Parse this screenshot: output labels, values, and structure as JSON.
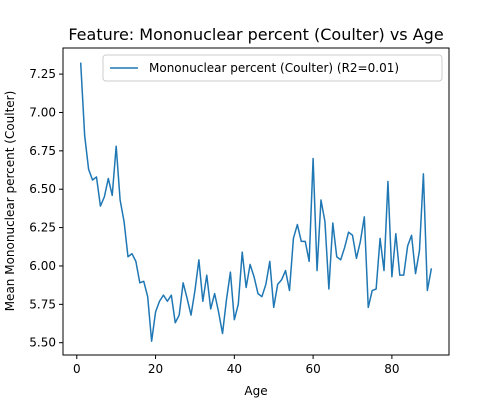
{
  "chart_data": {
    "type": "line",
    "title": "Feature: Mononuclear percent (Coulter) vs Age",
    "xlabel": "Age",
    "ylabel": "Mean Mononuclear percent (Coulter)",
    "xlim": [
      -3.5,
      94.5
    ],
    "ylim": [
      5.42,
      7.42
    ],
    "xticks": [
      0,
      20,
      40,
      60,
      80
    ],
    "xtick_labels": [
      "0",
      "20",
      "40",
      "60",
      "80"
    ],
    "yticks": [
      5.5,
      5.75,
      6.0,
      6.25,
      6.5,
      6.75,
      7.0,
      7.25
    ],
    "ytick_labels": [
      "5.50",
      "5.75",
      "6.00",
      "6.25",
      "6.50",
      "6.75",
      "7.00",
      "7.25"
    ],
    "grid": false,
    "legend_position": "top-right",
    "colors": {
      "series": "#1f77b4",
      "axes": "#000000",
      "background": "#ffffff"
    },
    "series": [
      {
        "name": "Mononuclear percent (Coulter) (R2=0.01)",
        "x": [
          1,
          2,
          3,
          4,
          5,
          6,
          7,
          8,
          9,
          10,
          11,
          12,
          13,
          14,
          15,
          16,
          17,
          18,
          19,
          20,
          21,
          22,
          23,
          24,
          25,
          26,
          27,
          28,
          29,
          30,
          31,
          32,
          33,
          34,
          35,
          36,
          37,
          38,
          39,
          40,
          41,
          42,
          43,
          44,
          45,
          46,
          47,
          48,
          49,
          50,
          51,
          52,
          53,
          54,
          55,
          56,
          57,
          58,
          59,
          60,
          61,
          62,
          63,
          64,
          65,
          66,
          67,
          68,
          69,
          70,
          71,
          72,
          73,
          74,
          75,
          76,
          77,
          78,
          79,
          80,
          81,
          82,
          83,
          84,
          85,
          86,
          87,
          88,
          89,
          90
        ],
        "y": [
          7.32,
          6.85,
          6.63,
          6.56,
          6.58,
          6.39,
          6.45,
          6.57,
          6.46,
          6.78,
          6.43,
          6.29,
          6.06,
          6.08,
          6.03,
          5.89,
          5.9,
          5.8,
          5.51,
          5.7,
          5.77,
          5.81,
          5.77,
          5.81,
          5.63,
          5.68,
          5.89,
          5.79,
          5.68,
          5.84,
          6.04,
          5.77,
          5.94,
          5.72,
          5.82,
          5.7,
          5.56,
          5.78,
          5.96,
          5.65,
          5.75,
          6.09,
          5.86,
          6.01,
          5.93,
          5.82,
          5.8,
          5.88,
          6.03,
          5.73,
          5.88,
          5.91,
          5.97,
          5.84,
          6.18,
          6.27,
          6.16,
          6.16,
          6.03,
          6.7,
          5.97,
          6.43,
          6.29,
          5.85,
          6.28,
          6.06,
          6.04,
          6.12,
          6.22,
          6.2,
          6.05,
          6.16,
          6.32,
          5.73,
          5.84,
          5.85,
          6.18,
          5.97,
          6.55,
          5.93,
          6.21,
          5.94,
          5.94,
          6.13,
          6.2,
          5.95,
          6.1,
          6.6,
          5.84,
          5.98
        ]
      }
    ]
  }
}
